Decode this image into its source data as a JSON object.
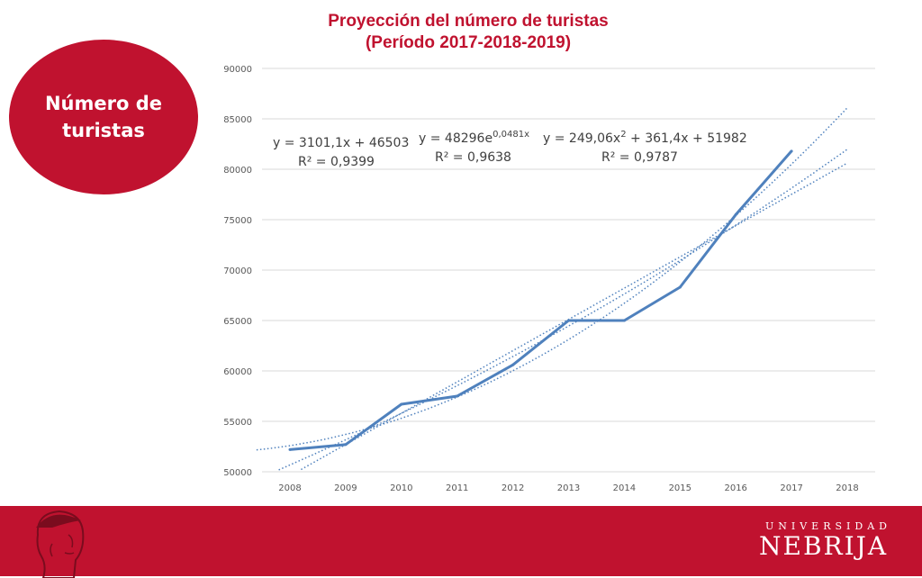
{
  "slide": {
    "title_line1": "Proyección del número de turistas",
    "title_line2": "(Período 2017-2018-2019)",
    "badge_line1": "Número de",
    "badge_line2": "turistas"
  },
  "brand": {
    "small": "UNIVERSIDAD",
    "big": "NEBRIJA",
    "accent": "#c0122f"
  },
  "chart_data": {
    "type": "line",
    "categories": [
      "2008",
      "2009",
      "2010",
      "2011",
      "2012",
      "2013",
      "2014",
      "2015",
      "2016",
      "2017",
      "2018"
    ],
    "series": [
      {
        "name": "",
        "values": [
          52200,
          52700,
          56700,
          57500,
          60600,
          65000,
          65000,
          68300,
          75500,
          81800,
          null
        ],
        "color": "#4f81bd"
      }
    ],
    "trendlines": [
      {
        "type": "linear",
        "coeffs": [
          3101.1,
          46503
        ]
      },
      {
        "type": "exponential",
        "coeffs": [
          48296,
          0.0481
        ]
      },
      {
        "type": "polynomial",
        "coeffs": [
          249.06,
          361.4,
          51982
        ]
      }
    ],
    "annotations": [
      {
        "eq": "y = 3101,1x + 46503",
        "r2": "R² = 0,9399"
      },
      {
        "eq_base": "y = 48296e",
        "eq_sup": "0,0481x",
        "r2": "R² = 0,9638"
      },
      {
        "eq_base": "y = 249,06x",
        "eq_sup": "2",
        "eq_tail": " + 361,4x + 51982",
        "r2": "R² = 0,9787"
      }
    ],
    "yticks": [
      "50000",
      "55000",
      "60000",
      "65000",
      "70000",
      "75000",
      "80000",
      "85000",
      "90000"
    ],
    "ylim": [
      50000,
      90000
    ],
    "grid": true,
    "legend": "none"
  }
}
